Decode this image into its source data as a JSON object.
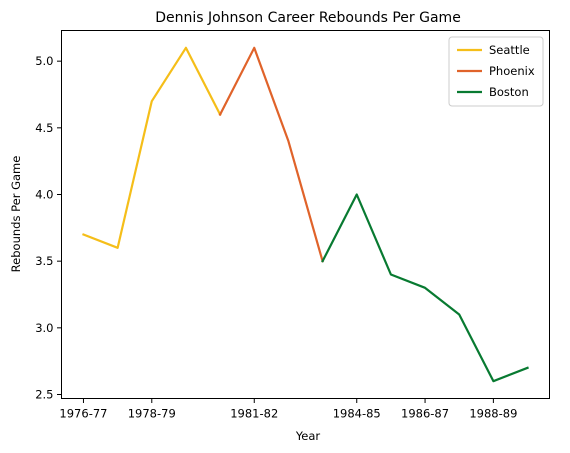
{
  "chart_data": {
    "type": "line",
    "title": "Dennis Johnson Career Rebounds Per Game",
    "xlabel": "Year",
    "ylabel": "Rebounds Per Game",
    "categories": [
      "1976-77",
      "1977-78",
      "1978-79",
      "1979-80",
      "1980-81",
      "1981-82",
      "1982-83",
      "1983-84",
      "1984-85",
      "1985-86",
      "1986-87",
      "1987-88",
      "1988-89",
      "1989-90"
    ],
    "xticks": [
      "1976-77",
      "1978-79",
      "1981-82",
      "1984-85",
      "1986-87",
      "1988-89"
    ],
    "ylim": [
      2.47,
      5.23
    ],
    "yticks": [
      "2.5",
      "3.0",
      "3.5",
      "4.0",
      "4.5",
      "5.0"
    ],
    "grid": false,
    "legend_position": "top-right",
    "series": [
      {
        "name": "Seattle",
        "color": "#f5be19",
        "x": [
          "1976-77",
          "1977-78",
          "1978-79",
          "1979-80",
          "1980-81"
        ],
        "values": [
          3.7,
          3.6,
          4.7,
          5.1,
          4.6
        ]
      },
      {
        "name": "Phoenix",
        "color": "#e0632a",
        "x": [
          "1980-81",
          "1981-82",
          "1982-83",
          "1983-84"
        ],
        "values": [
          4.6,
          5.1,
          4.4,
          3.5
        ]
      },
      {
        "name": "Boston",
        "color": "#087a31",
        "x": [
          "1983-84",
          "1984-85",
          "1985-86",
          "1986-87",
          "1987-88",
          "1988-89",
          "1989-90"
        ],
        "values": [
          3.5,
          4.0,
          3.4,
          3.3,
          3.1,
          2.6,
          2.7
        ]
      }
    ]
  }
}
